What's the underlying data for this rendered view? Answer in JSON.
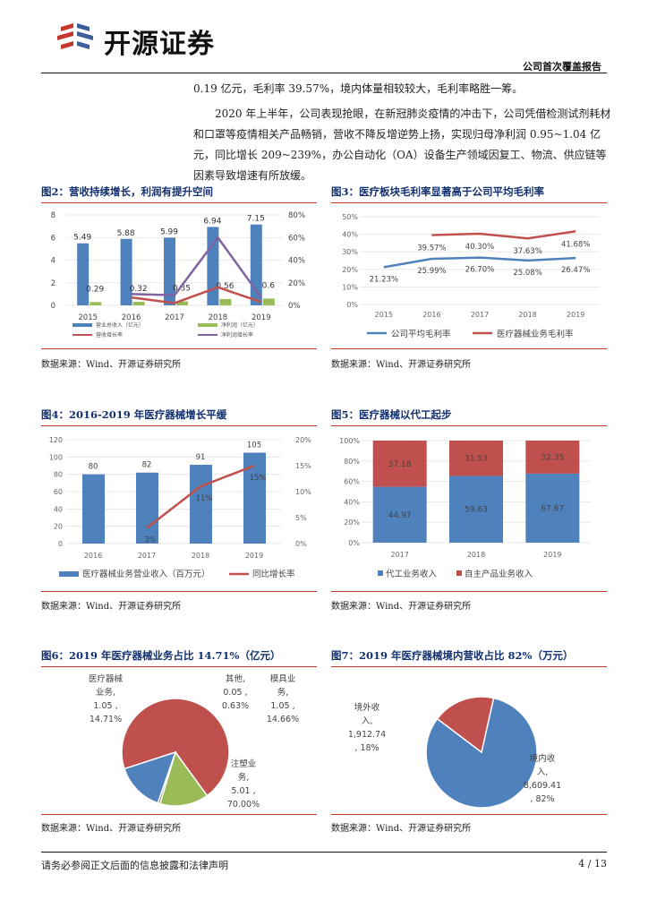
{
  "header": {
    "logo_text": "开源证券",
    "report_type": "公司首次覆盖报告"
  },
  "paragraphs": [
    "0.19 亿元，毛利率 39.57%，境内体量相较较大，毛利率略胜一筹。",
    "2020 年上半年，公司表现抢眼，在新冠肺炎疫情的冲击下，公司凭借检测试剂耗材和口罩等疫情相关产品畅销，营收不降反增逆势上扬，实现归母净利润 0.95~1.04 亿元，同比增长 209~239%，办公自动化（OA）设备生产领域因复工、物流、供应链等因素导致增速有所放缓。"
  ],
  "colors": {
    "blue": "#4f81bd",
    "red": "#c0504d",
    "green": "#9bbb59",
    "purple": "#8064a2",
    "title_blue": "#12306f",
    "rule_red": "#c4392d"
  },
  "figures": [
    {
      "title": "图2：营收持续增长，利润有提升空间",
      "source": "数据来源：Wind、开源证券研究所"
    },
    {
      "title": "图3：医疗板块毛利率显著高于公司平均毛利率",
      "source": "数据来源：Wind、开源证券研究所"
    },
    {
      "title": "图4：2016-2019 年医疗器械增长平缓",
      "source": "数据来源：Wind、开源证券研究所"
    },
    {
      "title": "图5：医疗器械以代工起步",
      "source": "数据来源：Wind、开源证券研究所"
    },
    {
      "title": "图6：2019 年医疗器械业务占比 14.71%（亿元）",
      "source": "数据来源：Wind、开源证券研究所"
    },
    {
      "title": "图7：2019 年医疗器械境内营收占比 82%（万元）",
      "source": "数据来源：Wind、开源证券研究所"
    }
  ],
  "chart_data": [
    {
      "type": "bar",
      "categories": [
        "2015",
        "2016",
        "2017",
        "2018",
        "2019"
      ],
      "series": [
        {
          "name": "营业总收入（亿元）",
          "type": "bar",
          "values": [
            5.49,
            5.88,
            5.99,
            6.94,
            7.15
          ]
        },
        {
          "name": "净利润（亿元）",
          "type": "bar",
          "values": [
            0.29,
            0.32,
            0.35,
            0.56,
            0.6
          ]
        },
        {
          "name": "营收增长率",
          "type": "line",
          "axis": "right",
          "values": [
            null,
            7,
            2,
            16,
            3
          ]
        },
        {
          "name": "净利润增长率",
          "type": "line",
          "axis": "right",
          "values": [
            null,
            10,
            9,
            60,
            7
          ]
        }
      ],
      "bar_labels": [
        [
          "5.49",
          "5.88",
          "5.99",
          "6.94",
          "7.15"
        ],
        [
          "0.29",
          "0.32",
          "0.35",
          "0.56",
          "0.6"
        ]
      ],
      "ylim": [
        0,
        8
      ],
      "yticks": [
        "0",
        "2",
        "4",
        "6",
        "8"
      ],
      "y2lim": [
        0,
        80
      ],
      "y2ticks": [
        "0%",
        "20%",
        "40%",
        "60%",
        "80%"
      ],
      "legend": "bottom"
    },
    {
      "type": "line",
      "categories": [
        "2015",
        "2016",
        "2017",
        "2018",
        "2019"
      ],
      "series": [
        {
          "name": "公司平均毛利率",
          "values": [
            21.23,
            25.99,
            26.7,
            25.08,
            26.47
          ],
          "labels": [
            "21.23%",
            "25.99%",
            "26.70%",
            "25.08%",
            "26.47%"
          ]
        },
        {
          "name": "医疗器械业务毛利率",
          "values": [
            null,
            39.57,
            40.3,
            37.63,
            41.68
          ],
          "labels": [
            "",
            "39.57%",
            "40.30%",
            "37.63%",
            "41.68%"
          ]
        }
      ],
      "ylim": [
        0,
        50
      ],
      "yticks": [
        "0%",
        "10%",
        "20%",
        "30%",
        "40%",
        "50%"
      ],
      "legend": "bottom"
    },
    {
      "type": "bar",
      "categories": [
        "2016",
        "2017",
        "2018",
        "2019"
      ],
      "series": [
        {
          "name": "医疗器械业务营业收入（百万元）",
          "type": "bar",
          "values": [
            80,
            82,
            91,
            105
          ],
          "labels": [
            "80",
            "82",
            "91",
            "105"
          ]
        },
        {
          "name": "同比增长率",
          "type": "line",
          "axis": "right",
          "values": [
            null,
            3,
            11,
            15
          ],
          "labels": [
            "",
            "3%",
            "11%",
            "15%"
          ]
        }
      ],
      "ylim": [
        0,
        120
      ],
      "yticks": [
        "0",
        "20",
        "40",
        "60",
        "80",
        "100",
        "120"
      ],
      "y2lim": [
        0,
        20
      ],
      "y2ticks": [
        "0%",
        "5%",
        "10%",
        "15%",
        "20%"
      ],
      "legend": "bottom"
    },
    {
      "type": "bar",
      "stacked": true,
      "categories": [
        "2017",
        "2018",
        "2019"
      ],
      "series": [
        {
          "name": "代工业务收入",
          "values": [
            44.97,
            59.63,
            67.67
          ],
          "labels": [
            "44.97",
            "59.63",
            "67.67"
          ]
        },
        {
          "name": "自主产品业务收入",
          "values": [
            37.18,
            31.53,
            32.35
          ],
          "labels": [
            "37.18",
            "31.53",
            "32.35"
          ]
        }
      ],
      "ylim": [
        0,
        100
      ],
      "yticks": [
        "0%",
        "20%",
        "40%",
        "60%",
        "80%",
        "100%"
      ],
      "legend": "bottom"
    },
    {
      "type": "pie",
      "slices": [
        {
          "name": "注塑业务",
          "value": 5.01,
          "pct": "70.00%",
          "label": [
            "注塑业",
            "务,",
            "5.01 ,",
            "70.00%"
          ]
        },
        {
          "name": "医疗器械业务",
          "value": 1.05,
          "pct": "14.71%",
          "label": [
            "医疗器械",
            "业务,",
            "1.05 ,",
            "14.71%"
          ]
        },
        {
          "name": "其他",
          "value": 0.05,
          "pct": "0.63%",
          "label": [
            "其他,",
            "0.05 ,",
            "0.63%"
          ]
        },
        {
          "name": "模具业务",
          "value": 1.05,
          "pct": "14.66%",
          "label": [
            "模具业",
            "务,",
            "1.05 ,",
            "14.66%"
          ]
        }
      ]
    },
    {
      "type": "pie",
      "slices": [
        {
          "name": "境内收入",
          "value": 8609.41,
          "pct": "82%",
          "label": [
            "境内收",
            "入,",
            "8,609.41",
            ", 82%"
          ]
        },
        {
          "name": "境外收入",
          "value": 1912.74,
          "pct": "18%",
          "label": [
            "境外收",
            "入,",
            "1,912.74",
            ", 18%"
          ]
        }
      ]
    }
  ],
  "footer": {
    "disclaimer": "请务必参阅正文后面的信息披露和法律声明",
    "page": "4 / 13"
  }
}
